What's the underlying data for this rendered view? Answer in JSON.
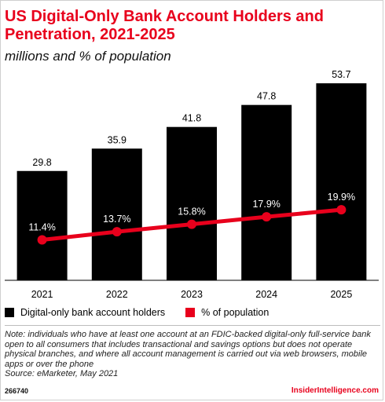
{
  "title": "US Digital-Only Bank Account Holders and Penetration, 2021-2025",
  "subtitle": "millions and % of population",
  "legend": {
    "bars_label": "Digital-only bank account holders",
    "line_label": "% of population"
  },
  "note": "Note: individuals who have at least one account at an FDIC-backed digital-only full-service bank open to all consumers that includes transactional and savings options but does not operate physical branches, and where all account management is carried out via web browsers, mobile apps or over the phone",
  "source": "Source: eMarketer, May 2021",
  "chart_id": "266740",
  "brand": "InsiderIntelligence.com",
  "colors": {
    "bars": "#000000",
    "line": "#e8001c",
    "title": "#e8001c"
  },
  "chart_data": {
    "type": "bar",
    "categories": [
      "2021",
      "2022",
      "2023",
      "2024",
      "2025"
    ],
    "series": [
      {
        "name": "Digital-only bank account holders",
        "type": "bar",
        "values": [
          29.8,
          35.9,
          41.8,
          47.8,
          53.7
        ],
        "labels": [
          "29.8",
          "35.9",
          "41.8",
          "47.8",
          "53.7"
        ]
      },
      {
        "name": "% of population",
        "type": "line",
        "values": [
          11.4,
          13.7,
          15.8,
          17.9,
          19.9
        ],
        "labels": [
          "11.4%",
          "13.7%",
          "15.8%",
          "17.9%",
          "19.9%"
        ]
      }
    ],
    "ylim_bars": [
      0,
      58
    ],
    "ylim_line": [
      0,
      60
    ],
    "grid": false,
    "legend_position": "bottom-left"
  }
}
